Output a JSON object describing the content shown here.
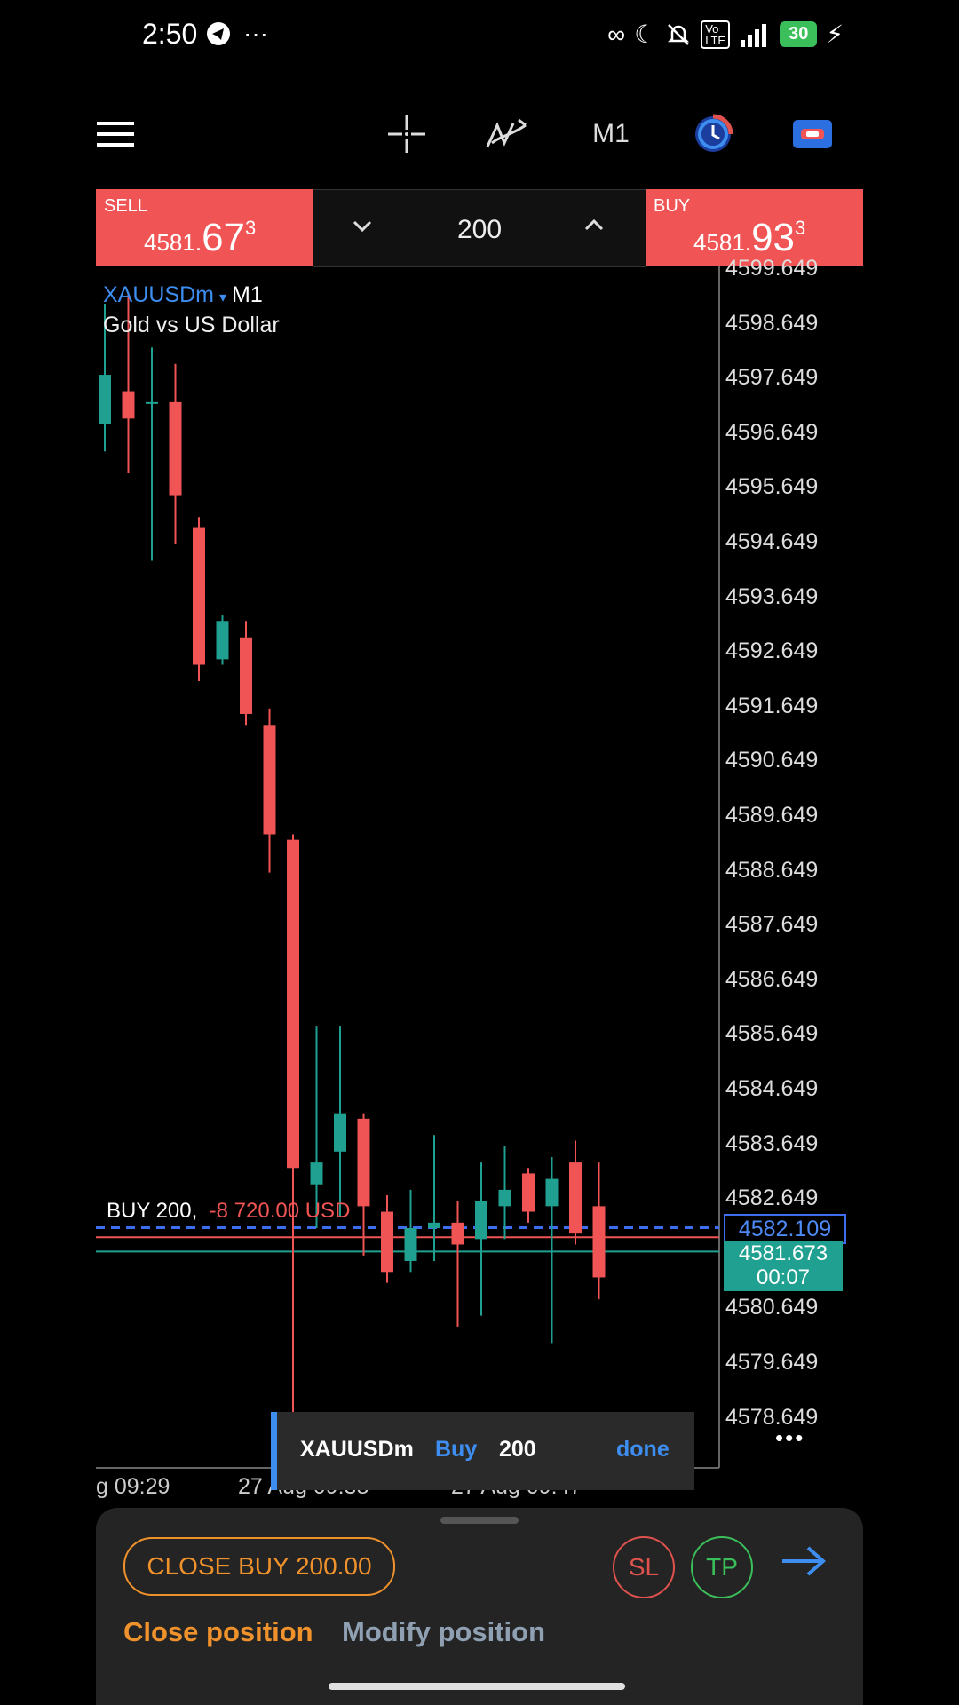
{
  "status_bar": {
    "time": "2:50",
    "battery": "30"
  },
  "toolbar": {
    "timeframe": "M1"
  },
  "order_panel": {
    "sell_label": "SELL",
    "sell_price_main": "4581.",
    "sell_price_big": "67",
    "sell_price_sup": "3",
    "volume": "200",
    "buy_label": "BUY",
    "buy_price_main": "4581.",
    "buy_price_big": "93",
    "buy_price_sup": "3"
  },
  "chart": {
    "symbol": "XAUUSDm",
    "timeframe": "M1",
    "description": "Gold vs US Dollar",
    "position_label": "BUY 200,",
    "position_pl": "-8 720.00 USD",
    "open_price_tag": "4582.109",
    "bid_price_tag": "4581.673",
    "countdown": "00:07",
    "time_labels": [
      "g 09:29",
      "27 Aug 09:38",
      "27 Aug 09:47"
    ]
  },
  "chart_data": {
    "type": "candlestick",
    "yticks": [
      "4599.649",
      "4598.649",
      "4597.649",
      "4596.649",
      "4595.649",
      "4594.649",
      "4593.649",
      "4592.649",
      "4591.649",
      "4590.649",
      "4589.649",
      "4588.649",
      "4587.649",
      "4586.649",
      "4585.649",
      "4584.649",
      "4583.649",
      "4582.649",
      "4581.649",
      "4580.649",
      "4579.649",
      "4578.649"
    ],
    "candles": [
      {
        "o": 4596.8,
        "h": 4599.0,
        "l": 4596.3,
        "c": 4597.7
      },
      {
        "o": 4597.4,
        "h": 4599.2,
        "l": 4595.9,
        "c": 4596.9
      },
      {
        "o": 4597.2,
        "h": 4598.2,
        "l": 4594.3,
        "c": 4597.2
      },
      {
        "o": 4597.2,
        "h": 4597.9,
        "l": 4594.6,
        "c": 4595.5
      },
      {
        "o": 4594.9,
        "h": 4595.1,
        "l": 4592.1,
        "c": 4592.4
      },
      {
        "o": 4592.5,
        "h": 4593.3,
        "l": 4592.4,
        "c": 4593.2
      },
      {
        "o": 4592.9,
        "h": 4593.2,
        "l": 4591.3,
        "c": 4591.5
      },
      {
        "o": 4591.3,
        "h": 4591.6,
        "l": 4588.6,
        "c": 4589.3
      },
      {
        "o": 4589.2,
        "h": 4589.3,
        "l": 4578.5,
        "c": 4583.2
      },
      {
        "o": 4582.9,
        "h": 4585.8,
        "l": 4582.1,
        "c": 4583.3
      },
      {
        "o": 4583.5,
        "h": 4585.8,
        "l": 4582.3,
        "c": 4584.2
      },
      {
        "o": 4584.1,
        "h": 4584.2,
        "l": 4581.6,
        "c": 4582.5
      },
      {
        "o": 4582.4,
        "h": 4582.7,
        "l": 4581.1,
        "c": 4581.3
      },
      {
        "o": 4581.5,
        "h": 4582.8,
        "l": 4581.3,
        "c": 4582.1
      },
      {
        "o": 4582.1,
        "h": 4583.8,
        "l": 4581.5,
        "c": 4582.2
      },
      {
        "o": 4582.2,
        "h": 4582.6,
        "l": 4580.3,
        "c": 4581.8
      },
      {
        "o": 4581.9,
        "h": 4583.3,
        "l": 4580.5,
        "c": 4582.6
      },
      {
        "o": 4582.5,
        "h": 4583.6,
        "l": 4581.9,
        "c": 4582.8
      },
      {
        "o": 4583.1,
        "h": 4583.2,
        "l": 4582.2,
        "c": 4582.4
      },
      {
        "o": 4582.5,
        "h": 4583.4,
        "l": 4580.0,
        "c": 4583.0
      },
      {
        "o": 4583.3,
        "h": 4583.7,
        "l": 4581.8,
        "c": 4582.0
      },
      {
        "o": 4582.5,
        "h": 4583.3,
        "l": 4580.8,
        "c": 4581.2
      }
    ],
    "lines": {
      "open_price": 4582.109,
      "bid": 4581.673,
      "ask": 4581.933
    }
  },
  "toast": {
    "symbol": "XAUUSDm",
    "side": "Buy",
    "volume": "200",
    "action": "done"
  },
  "sheet": {
    "close_button": "CLOSE BUY 200.00",
    "sl": "SL",
    "tp": "TP",
    "tab_close": "Close position",
    "tab_modify": "Modify position"
  },
  "colors": {
    "bull": "#20a090",
    "bear": "#f05454",
    "accent": "#3d8ef0",
    "orange": "#f0922c"
  }
}
